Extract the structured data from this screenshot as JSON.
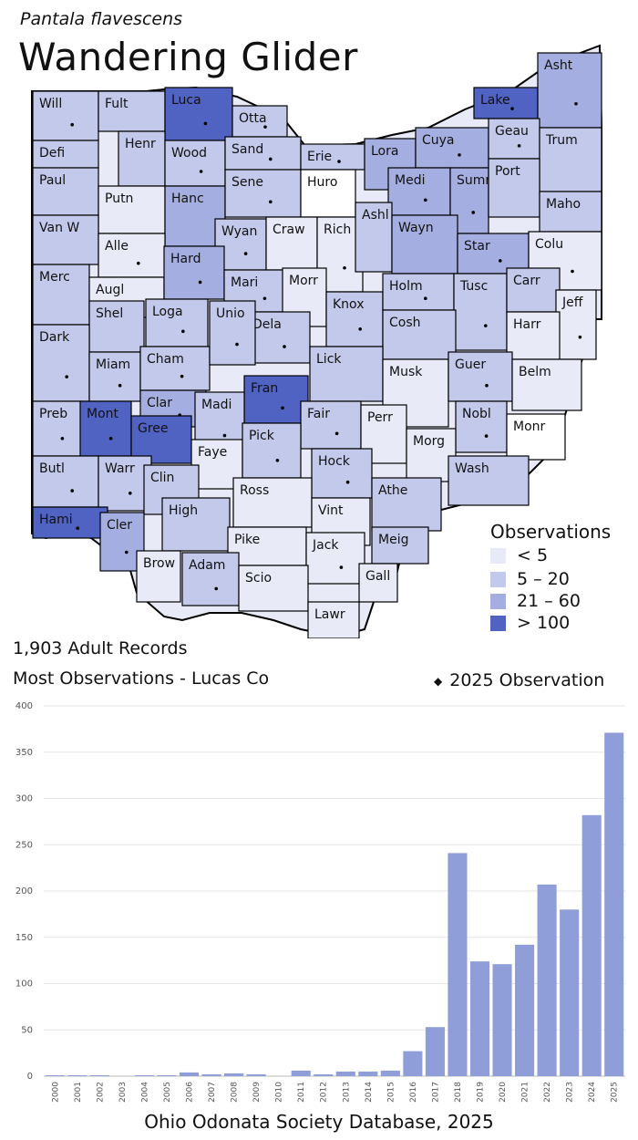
{
  "header": {
    "species": "Pantala flavescens",
    "title": "Wandering Glider"
  },
  "summary": {
    "records": "1,903 Adult Records",
    "most": "Most Observations - Lucas Co",
    "obs_2025_label": "2025 Observation"
  },
  "legend": {
    "title": "Observations",
    "items": [
      {
        "label": "< 5",
        "color": "#e8ebf7"
      },
      {
        "label": "5 – 20",
        "color": "#c3c9ea"
      },
      {
        "label": "21 – 60",
        "color": "#a5aee0"
      },
      {
        "label": "> 100",
        "color": "#5062c2"
      }
    ]
  },
  "map": {
    "counties": [
      {
        "name": "Will",
        "level": 1,
        "dot": true
      },
      {
        "name": "Fult",
        "level": 1,
        "dot": false
      },
      {
        "name": "Luca",
        "level": 3,
        "dot": true
      },
      {
        "name": "Otta",
        "level": 1,
        "dot": true
      },
      {
        "name": "Lake",
        "level": 3,
        "dot": true
      },
      {
        "name": "Asht",
        "level": 2,
        "dot": true
      },
      {
        "name": "Defi",
        "level": 1,
        "dot": false
      },
      {
        "name": "Henr",
        "level": 1,
        "dot": false
      },
      {
        "name": "Wood",
        "level": 1,
        "dot": true
      },
      {
        "name": "Sand",
        "level": 1,
        "dot": true
      },
      {
        "name": "Erie",
        "level": 1,
        "dot": true
      },
      {
        "name": "Lora",
        "level": 2,
        "dot": true
      },
      {
        "name": "Cuya",
        "level": 2,
        "dot": true
      },
      {
        "name": "Geau",
        "level": 1,
        "dot": true
      },
      {
        "name": "Trum",
        "level": 1,
        "dot": false
      },
      {
        "name": "Paul",
        "level": 1,
        "dot": false
      },
      {
        "name": "Putn",
        "level": 0,
        "dot": false
      },
      {
        "name": "Hanc",
        "level": 2,
        "dot": false
      },
      {
        "name": "Sene",
        "level": 1,
        "dot": true
      },
      {
        "name": "Huro",
        "level": -1,
        "dot": false
      },
      {
        "name": "Medi",
        "level": 2,
        "dot": true
      },
      {
        "name": "Summ",
        "level": 2,
        "dot": true
      },
      {
        "name": "Port",
        "level": 1,
        "dot": false
      },
      {
        "name": "Maho",
        "level": 1,
        "dot": false
      },
      {
        "name": "Van W",
        "level": 1,
        "dot": false
      },
      {
        "name": "Alle",
        "level": 0,
        "dot": true
      },
      {
        "name": "Wyan",
        "level": 1,
        "dot": true
      },
      {
        "name": "Craw",
        "level": 0,
        "dot": false
      },
      {
        "name": "Rich",
        "level": 0,
        "dot": true
      },
      {
        "name": "Ashl",
        "level": 1,
        "dot": false
      },
      {
        "name": "Wayn",
        "level": 2,
        "dot": false
      },
      {
        "name": "Star",
        "level": 2,
        "dot": true
      },
      {
        "name": "Colu",
        "level": 0,
        "dot": true
      },
      {
        "name": "Merc",
        "level": 1,
        "dot": false
      },
      {
        "name": "Augl",
        "level": 0,
        "dot": false
      },
      {
        "name": "Hard",
        "level": 2,
        "dot": true
      },
      {
        "name": "Mari",
        "level": 1,
        "dot": true
      },
      {
        "name": "Morr",
        "level": 0,
        "dot": false
      },
      {
        "name": "Knox",
        "level": 1,
        "dot": true
      },
      {
        "name": "Holm",
        "level": 1,
        "dot": true
      },
      {
        "name": "Tusc",
        "level": 1,
        "dot": true
      },
      {
        "name": "Carr",
        "level": 1,
        "dot": false
      },
      {
        "name": "Jeff",
        "level": 0,
        "dot": true
      },
      {
        "name": "Shel",
        "level": 1,
        "dot": false
      },
      {
        "name": "Loga",
        "level": 1,
        "dot": true
      },
      {
        "name": "Dela",
        "level": 1,
        "dot": true
      },
      {
        "name": "Cosh",
        "level": 1,
        "dot": false
      },
      {
        "name": "Harr",
        "level": 0,
        "dot": false
      },
      {
        "name": "Dark",
        "level": 1,
        "dot": true
      },
      {
        "name": "Miam",
        "level": 1,
        "dot": true
      },
      {
        "name": "Cham",
        "level": 1,
        "dot": true
      },
      {
        "name": "Unio",
        "level": 1,
        "dot": true
      },
      {
        "name": "Lick",
        "level": 1,
        "dot": false
      },
      {
        "name": "Musk",
        "level": 0,
        "dot": false
      },
      {
        "name": "Guer",
        "level": 1,
        "dot": true
      },
      {
        "name": "Belm",
        "level": 0,
        "dot": false
      },
      {
        "name": "Clar",
        "level": 2,
        "dot": true
      },
      {
        "name": "Fran",
        "level": 3,
        "dot": true
      },
      {
        "name": "Madi",
        "level": 1,
        "dot": true
      },
      {
        "name": "Preb",
        "level": 1,
        "dot": true
      },
      {
        "name": "Mont",
        "level": 3,
        "dot": true
      },
      {
        "name": "Gree",
        "level": 3,
        "dot": false
      },
      {
        "name": "Fair",
        "level": 1,
        "dot": true
      },
      {
        "name": "Perr",
        "level": 0,
        "dot": false
      },
      {
        "name": "Nobl",
        "level": 1,
        "dot": true
      },
      {
        "name": "Monr",
        "level": -1,
        "dot": false
      },
      {
        "name": "Faye",
        "level": 0,
        "dot": false
      },
      {
        "name": "Pick",
        "level": 1,
        "dot": true
      },
      {
        "name": "Morg",
        "level": 0,
        "dot": false
      },
      {
        "name": "Butl",
        "level": 1,
        "dot": true
      },
      {
        "name": "Warr",
        "level": 1,
        "dot": true
      },
      {
        "name": "Clin",
        "level": 1,
        "dot": false
      },
      {
        "name": "Hock",
        "level": 1,
        "dot": true
      },
      {
        "name": "Wash",
        "level": 1,
        "dot": false
      },
      {
        "name": "Athe",
        "level": 1,
        "dot": false
      },
      {
        "name": "Ross",
        "level": 0,
        "dot": false
      },
      {
        "name": "High",
        "level": 1,
        "dot": false
      },
      {
        "name": "Vint",
        "level": 0,
        "dot": false
      },
      {
        "name": "Hami",
        "level": 3,
        "dot": true
      },
      {
        "name": "Cler",
        "level": 2,
        "dot": true
      },
      {
        "name": "Meig",
        "level": 1,
        "dot": false
      },
      {
        "name": "Pike",
        "level": 0,
        "dot": false
      },
      {
        "name": "Jack",
        "level": 0,
        "dot": true
      },
      {
        "name": "Brow",
        "level": 0,
        "dot": false
      },
      {
        "name": "Adam",
        "level": 1,
        "dot": true
      },
      {
        "name": "Scio",
        "level": 0,
        "dot": false
      },
      {
        "name": "Gall",
        "level": 0,
        "dot": false
      },
      {
        "name": "Lawr",
        "level": 0,
        "dot": false
      }
    ]
  },
  "chart_data": {
    "type": "bar",
    "title": "",
    "xlabel": "",
    "ylabel": "",
    "ylim": [
      0,
      400
    ],
    "yticks": [
      0,
      50,
      100,
      150,
      200,
      250,
      300,
      350,
      400
    ],
    "categories": [
      "2000",
      "2001",
      "2002",
      "2003",
      "2004",
      "2005",
      "2006",
      "2007",
      "2008",
      "2009",
      "2010",
      "2011",
      "2012",
      "2013",
      "2014",
      "2015",
      "2016",
      "2017",
      "2018",
      "2019",
      "2020",
      "2021",
      "2022",
      "2023",
      "2024",
      "2025"
    ],
    "values": [
      1,
      1,
      1,
      0,
      1,
      1,
      4,
      2,
      3,
      2,
      0,
      6,
      2,
      5,
      5,
      6,
      27,
      53,
      241,
      124,
      121,
      142,
      207,
      180,
      282,
      371
    ],
    "bar_color": "#8f9ed9",
    "grid": true
  },
  "footer": {
    "source": "Ohio Odonata Society Database, 2025"
  }
}
